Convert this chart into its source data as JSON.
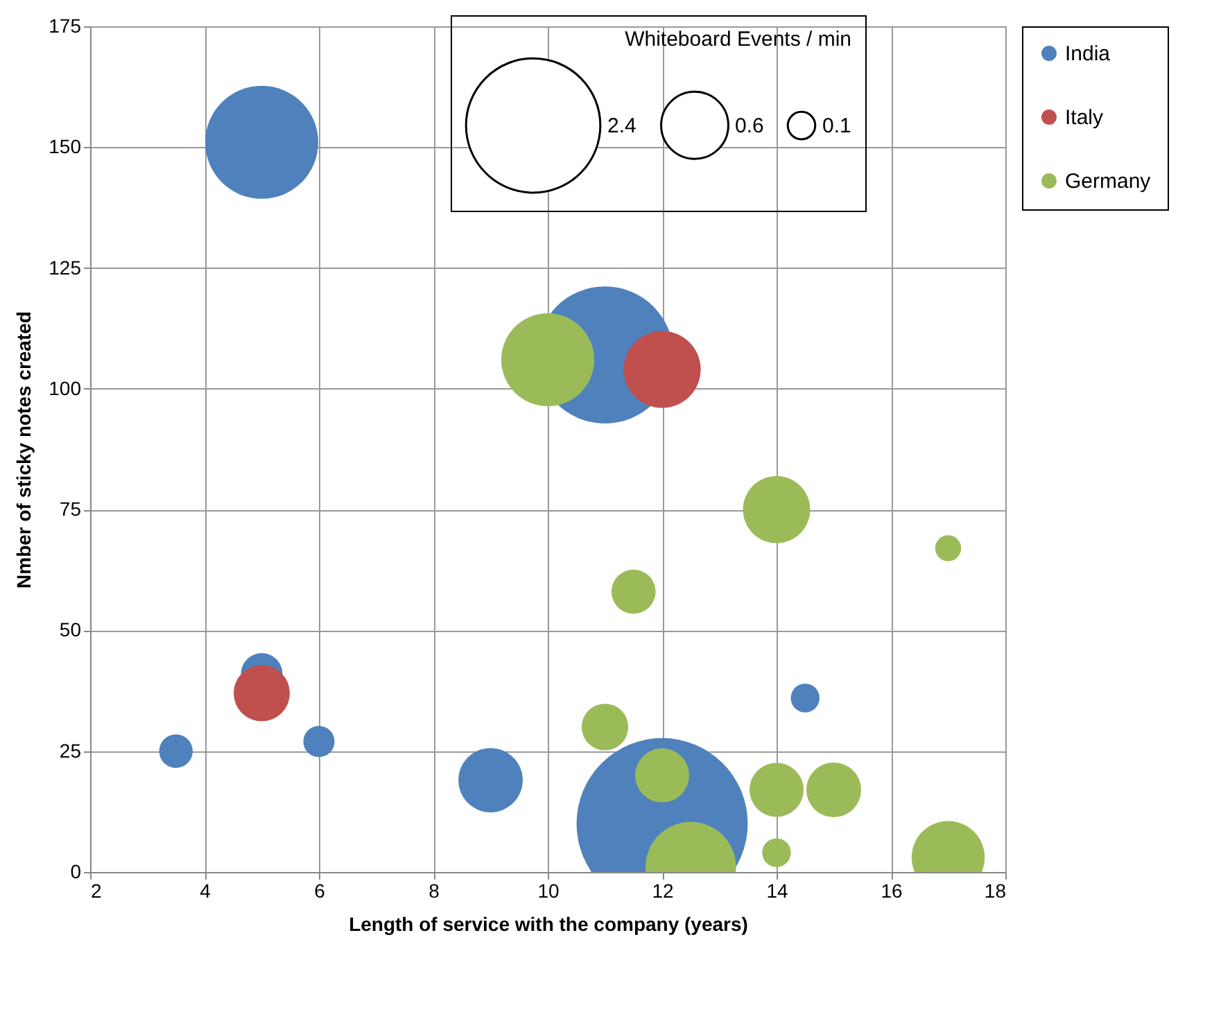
{
  "chart_data": {
    "type": "bubble",
    "xlabel": "Length of service with the company (years)",
    "ylabel": "Nmber of sticky notes created",
    "legend_title": "Whiteboard Events / min",
    "xlim": [
      2,
      18
    ],
    "xticks": [
      2,
      4,
      6,
      8,
      10,
      12,
      14,
      16,
      18
    ],
    "ylim": [
      0,
      175
    ],
    "yticks": [
      0,
      25,
      50,
      75,
      100,
      125,
      150,
      175
    ],
    "grid": true,
    "legend": "right",
    "size_legend": [
      2.4,
      0.6,
      0.1
    ],
    "series": [
      {
        "name": "India",
        "color": "#4f81bd",
        "x": [
          11,
          12,
          5,
          9,
          5,
          3.5,
          6,
          14.5
        ],
        "values": [
          107,
          10,
          151,
          19,
          41,
          25,
          27,
          36
        ],
        "sizes": [
          2.5,
          3.9,
          1.7,
          0.55,
          0.23,
          0.15,
          0.13,
          0.11
        ]
      },
      {
        "name": "Italy",
        "color": "#c0504d",
        "x": [
          12,
          5
        ],
        "values": [
          104,
          37
        ],
        "sizes": [
          0.79,
          0.42
        ]
      },
      {
        "name": "Germany",
        "color": "#9bbb59",
        "x": [
          10,
          12.5,
          17,
          14,
          15,
          14,
          12,
          11,
          11.5,
          14,
          17
        ],
        "values": [
          106,
          1,
          3,
          75,
          17,
          17,
          20,
          30,
          58,
          4,
          67
        ],
        "sizes": [
          1.15,
          1.09,
          0.71,
          0.6,
          0.4,
          0.39,
          0.39,
          0.29,
          0.26,
          0.11,
          0.09
        ]
      }
    ]
  }
}
